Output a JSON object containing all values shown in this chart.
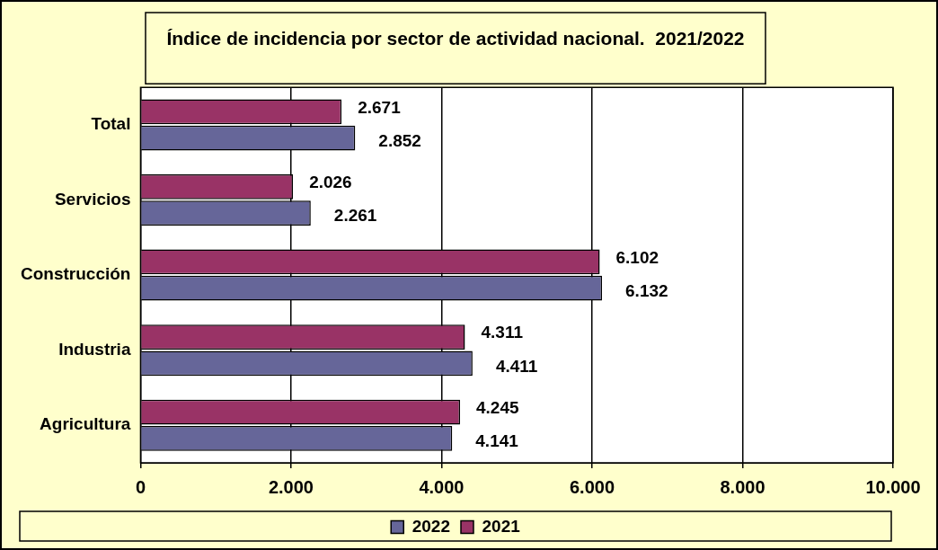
{
  "chart_data": {
    "type": "bar",
    "orientation": "horizontal",
    "title": "Índice de incidencia por sector de actividad nacional.  2021/2022",
    "categories": [
      "Total",
      "Servicios",
      "Construcción",
      "Industria",
      "Agricultura"
    ],
    "series": [
      {
        "name": "2021",
        "color": "#993366",
        "values": [
          2671,
          2026,
          6102,
          4311,
          4245
        ],
        "value_labels": [
          "2.671",
          "2.026",
          "6.102",
          "4.311",
          "4.245"
        ]
      },
      {
        "name": "2022",
        "color": "#666699",
        "values": [
          2852,
          2261,
          6132,
          4411,
          4141
        ],
        "value_labels": [
          "2.852",
          "2.261",
          "6.132",
          "4.411",
          "4.141"
        ]
      }
    ],
    "xlim": [
      0,
      10000
    ],
    "xticks": [
      {
        "value": 0,
        "label": "0"
      },
      {
        "value": 2000,
        "label": "2.000"
      },
      {
        "value": 4000,
        "label": "4.000"
      },
      {
        "value": 6000,
        "label": "6.000"
      },
      {
        "value": 8000,
        "label": "8.000"
      },
      {
        "value": 10000,
        "label": "10.000"
      }
    ],
    "grid": "x",
    "legend": "bottom"
  }
}
